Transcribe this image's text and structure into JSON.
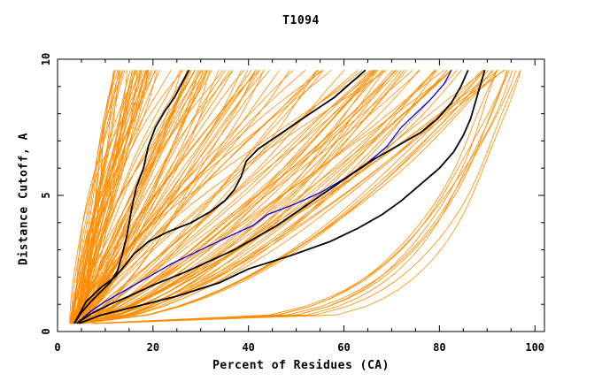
{
  "chart_data": {
    "type": "line",
    "title": "T1094",
    "xlabel": "Percent of Residues (CA)",
    "ylabel": "Distance Cutoff, A",
    "xlim": [
      0,
      102
    ],
    "ylim": [
      0,
      10
    ],
    "x_ticks": [
      0,
      20,
      40,
      60,
      80,
      100
    ],
    "y_ticks": [
      0,
      5,
      10
    ],
    "colors": {
      "background": "#ffffff",
      "models": "#ff8c00",
      "highlight": "#000000",
      "reference": "#0000ff"
    },
    "series": [
      {
        "color": "#000000",
        "x": [
          3.5,
          5,
          7,
          9,
          11,
          12.5,
          13.5,
          14.5,
          15.5,
          16.5,
          18,
          19,
          20.5,
          22.5,
          24.5,
          26,
          27.5
        ],
        "y": [
          0.3,
          0.7,
          1.1,
          1.45,
          1.8,
          2.2,
          2.8,
          3.5,
          4.5,
          5.3,
          6.0,
          6.8,
          7.5,
          8.1,
          8.6,
          9.1,
          9.6
        ]
      },
      {
        "color": "#000000",
        "x": [
          3.5,
          6,
          9,
          12,
          14,
          16,
          19,
          23,
          28,
          32,
          35,
          37,
          38.5,
          39.5,
          42,
          47,
          52,
          58,
          64.5
        ],
        "y": [
          0.3,
          1.1,
          1.6,
          2.0,
          2.4,
          2.85,
          3.3,
          3.65,
          4.0,
          4.4,
          4.8,
          5.2,
          5.7,
          6.25,
          6.7,
          7.3,
          7.9,
          8.6,
          9.6
        ]
      },
      {
        "color": "#0000ff",
        "x": [
          4,
          7,
          10,
          14,
          19,
          24,
          30,
          36,
          41,
          44,
          50,
          55,
          60,
          65,
          69,
          72,
          75,
          78,
          81,
          82.5
        ],
        "y": [
          0.3,
          0.75,
          1.1,
          1.5,
          2.0,
          2.5,
          3.0,
          3.5,
          3.9,
          4.3,
          4.7,
          5.1,
          5.6,
          6.2,
          6.8,
          7.5,
          8.0,
          8.5,
          9.1,
          9.6
        ]
      },
      {
        "color": "#000000",
        "x": [
          4,
          7,
          11,
          15,
          20,
          27,
          32,
          37,
          41,
          46,
          51,
          56,
          61,
          66,
          71,
          76,
          79.5,
          82.5,
          84.5,
          86
        ],
        "y": [
          0.3,
          0.65,
          1.0,
          1.3,
          1.7,
          2.2,
          2.6,
          3.0,
          3.4,
          3.9,
          4.5,
          5.1,
          5.7,
          6.3,
          6.8,
          7.3,
          7.8,
          8.4,
          9.0,
          9.6
        ]
      },
      {
        "color": "#000000",
        "x": [
          4.5,
          9,
          16,
          25,
          34,
          40,
          49,
          57,
          63,
          68,
          72,
          76,
          80,
          83,
          85,
          86.5,
          87.5,
          88.5,
          89.5
        ],
        "y": [
          0.3,
          0.6,
          0.9,
          1.3,
          1.8,
          2.3,
          2.8,
          3.3,
          3.8,
          4.3,
          4.8,
          5.4,
          6.0,
          6.6,
          7.2,
          7.8,
          8.4,
          9.0,
          9.6
        ]
      }
    ]
  }
}
